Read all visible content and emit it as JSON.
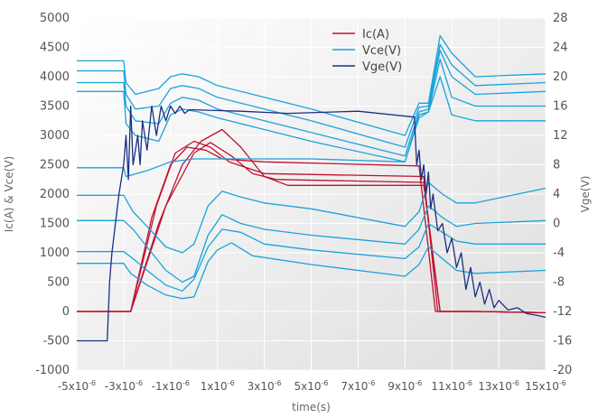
{
  "chart_data": {
    "type": "line",
    "xlabel": "time(s)",
    "ylabel_left": "Ic(A) & Vce(V)",
    "ylabel_right": "Vge(V)",
    "xlim": [
      -5,
      15
    ],
    "ylim_left": [
      -1000,
      5000
    ],
    "ylim_right": [
      -20,
      28
    ],
    "x_ticks": [
      -5,
      -3,
      -1,
      1,
      3,
      5,
      7,
      9,
      11,
      13,
      15
    ],
    "x_tick_labels": [
      "-5x10-6",
      "-3x10-6",
      "-1x10-6",
      "1x10-6",
      "3x10-6",
      "5x10-6",
      "7x10-6",
      "9x10-6",
      "11x10-6",
      "13x10-6",
      "15x10-6"
    ],
    "y_ticks_left": [
      -1000,
      -500,
      0,
      500,
      1000,
      1500,
      2000,
      2500,
      3000,
      3500,
      4000,
      4500,
      5000
    ],
    "y_ticks_right": [
      -20,
      -16,
      -12,
      -8,
      -4,
      0,
      4,
      8,
      12,
      16,
      20,
      24,
      28
    ],
    "grid": true,
    "legend_position": "top-center",
    "colors": {
      "Ic": "#c0102e",
      "Vce": "#1aa3db",
      "Vge": "#1a2f80"
    },
    "legend": [
      {
        "key": "Ic",
        "label": "Ic(A)"
      },
      {
        "key": "Vce",
        "label": "Vce(V)"
      },
      {
        "key": "Vge",
        "label": "Vge(V)"
      }
    ],
    "series": [
      {
        "group": "Ic",
        "axis": "left",
        "x": [
          -5,
          -2.7,
          -1.5,
          -0.5,
          0.3,
          1.2,
          2.0,
          3.0,
          4.0,
          9.8,
          10.5,
          12.0,
          15.0
        ],
        "y": [
          0,
          0,
          1500,
          2500,
          2900,
          3100,
          2800,
          2300,
          2150,
          2150,
          0,
          0,
          -20
        ]
      },
      {
        "group": "Ic",
        "axis": "left",
        "x": [
          -5,
          -2.7,
          -1.2,
          0.0,
          0.7,
          1.6,
          2.5,
          3.5,
          9.8,
          10.5,
          12.0,
          15.0
        ],
        "y": [
          0,
          0,
          1800,
          2700,
          2880,
          2650,
          2350,
          2250,
          2200,
          0,
          0,
          -20
        ]
      },
      {
        "group": "Ic",
        "axis": "left",
        "x": [
          -5,
          -2.7,
          -1.6,
          -0.8,
          0.0,
          0.7,
          1.5,
          3.0,
          9.8,
          10.4,
          12.0,
          15.0
        ],
        "y": [
          0,
          0,
          1800,
          2700,
          2900,
          2800,
          2550,
          2350,
          2300,
          0,
          0,
          -20
        ]
      },
      {
        "group": "Ic",
        "axis": "left",
        "x": [
          -5,
          -2.7,
          -1.8,
          -1.0,
          -0.3,
          0.5,
          1.2,
          3.0,
          9.6,
          10.3,
          12.0,
          15.0
        ],
        "y": [
          0,
          0,
          1600,
          2500,
          2800,
          2750,
          2600,
          2550,
          2480,
          0,
          0,
          -20
        ]
      },
      {
        "group": "Vce",
        "axis": "left",
        "x": [
          -5,
          -3.0,
          -2.9,
          -2.5,
          -1.5,
          -1.0,
          -0.5,
          0.2,
          1.0,
          3.0,
          5.0,
          9.0,
          9.6,
          10.0,
          10.5,
          11.0,
          12.0,
          15.0
        ],
        "y": [
          4270,
          4270,
          3900,
          3700,
          3800,
          4000,
          4050,
          4000,
          3850,
          3650,
          3450,
          3000,
          3550,
          3550,
          4700,
          4400,
          4000,
          4050
        ]
      },
      {
        "group": "Vce",
        "axis": "left",
        "x": [
          -5,
          -3.0,
          -2.9,
          -2.5,
          -1.5,
          -1.0,
          -0.5,
          0.2,
          1.0,
          3.0,
          5.0,
          9.0,
          9.6,
          10.0,
          10.5,
          11.0,
          12.0,
          15.0
        ],
        "y": [
          4100,
          4100,
          3700,
          3450,
          3500,
          3800,
          3850,
          3800,
          3650,
          3450,
          3250,
          2800,
          3480,
          3500,
          4550,
          4200,
          3850,
          3900
        ]
      },
      {
        "group": "Vce",
        "axis": "left",
        "x": [
          -5,
          -3.0,
          -2.9,
          -2.5,
          -1.5,
          -1.0,
          -0.5,
          0.2,
          1.0,
          3.0,
          5.0,
          9.0,
          9.6,
          10.0,
          10.5,
          11.0,
          12.0,
          15.0
        ],
        "y": [
          3900,
          3900,
          3500,
          3250,
          3200,
          3550,
          3650,
          3600,
          3450,
          3250,
          3050,
          2650,
          3400,
          3450,
          4450,
          4000,
          3700,
          3750
        ]
      },
      {
        "group": "Vce",
        "axis": "left",
        "x": [
          -5,
          -3.0,
          -2.9,
          -2.5,
          -1.5,
          -1.0,
          -0.5,
          0.2,
          1.0,
          3.0,
          5.0,
          9.0,
          9.6,
          10.0,
          10.5,
          11.0,
          12.0,
          15.0
        ],
        "y": [
          3750,
          3750,
          3200,
          3000,
          2900,
          3350,
          3450,
          3400,
          3300,
          3100,
          2900,
          2550,
          3350,
          3400,
          4300,
          3650,
          3500,
          3500
        ]
      },
      {
        "group": "Vce",
        "axis": "left",
        "x": [
          -5,
          -3.0,
          -2.9,
          -2.0,
          -1.0,
          0.0,
          2.0,
          5.0,
          9.0,
          9.6,
          10.0,
          10.5,
          11.0,
          12.0,
          15.0
        ],
        "y": [
          2450,
          2450,
          2300,
          2400,
          2550,
          2600,
          2600,
          2600,
          2550,
          3300,
          3400,
          4000,
          3350,
          3250,
          3250
        ]
      },
      {
        "group": "Vce",
        "axis": "left",
        "x": [
          -5,
          -3.0,
          -2.6,
          -2.0,
          -1.2,
          -0.5,
          0.0,
          0.6,
          1.2,
          2.0,
          3.0,
          5.0,
          9.0,
          9.6,
          10.0,
          10.6,
          11.2,
          12.0,
          15.0
        ],
        "y": [
          1980,
          1980,
          1700,
          1450,
          1100,
          1000,
          1150,
          1800,
          2050,
          1950,
          1850,
          1750,
          1450,
          1700,
          2200,
          2000,
          1850,
          1850,
          2100
        ]
      },
      {
        "group": "Vce",
        "axis": "left",
        "x": [
          -5,
          -3.0,
          -2.6,
          -2.0,
          -1.2,
          -0.5,
          0.0,
          0.6,
          1.2,
          2.0,
          3.0,
          5.0,
          9.0,
          9.6,
          10.0,
          10.6,
          11.2,
          12.0,
          15.0
        ],
        "y": [
          1550,
          1550,
          1400,
          1100,
          700,
          500,
          600,
          1300,
          1650,
          1500,
          1400,
          1300,
          1150,
          1400,
          1800,
          1600,
          1450,
          1500,
          1550
        ]
      },
      {
        "group": "Vce",
        "axis": "left",
        "x": [
          -5,
          -3.0,
          -2.6,
          -2.0,
          -1.2,
          -0.5,
          0.0,
          0.6,
          1.2,
          2.0,
          3.0,
          5.0,
          9.0,
          9.6,
          10.0,
          10.6,
          11.2,
          12.0,
          15.0
        ],
        "y": [
          1020,
          1020,
          900,
          700,
          450,
          350,
          550,
          1100,
          1400,
          1350,
          1150,
          1050,
          900,
          1100,
          1500,
          1350,
          1200,
          1150,
          1150
        ]
      },
      {
        "group": "Vce",
        "axis": "left",
        "x": [
          -5,
          -3.0,
          -2.7,
          -2.0,
          -1.2,
          -0.5,
          0.0,
          0.6,
          1.0,
          1.6,
          2.5,
          5.0,
          9.0,
          9.6,
          10.0,
          10.6,
          11.2,
          12.0,
          15.0
        ],
        "y": [
          820,
          820,
          650,
          450,
          280,
          220,
          250,
          850,
          1050,
          1170,
          950,
          800,
          600,
          800,
          1100,
          900,
          700,
          650,
          700
        ]
      },
      {
        "group": "Vge",
        "axis": "right",
        "x": [
          -5,
          -3.7,
          -3.6,
          -3.5,
          -3.2,
          -3.0,
          -2.9,
          -2.8,
          -2.7,
          -2.6,
          -2.5,
          -2.4,
          -2.3,
          -2.2,
          -2.0,
          -1.8,
          -1.6,
          -1.4,
          -1.2,
          -1.0,
          -0.8,
          -0.6,
          -0.4,
          -0.2,
          0.0,
          2.0,
          4.0,
          7.0,
          9.4,
          9.5,
          9.6,
          9.7,
          9.8,
          9.9,
          10.0,
          10.1,
          10.2,
          10.4,
          10.6,
          10.8,
          11.0,
          11.2,
          11.4,
          11.6,
          11.8,
          12.0,
          12.2,
          12.4,
          12.6,
          12.8,
          13.0,
          13.4,
          13.8,
          14.2,
          14.6,
          15.0
        ],
        "y": [
          -16,
          -16,
          -8,
          -4,
          4,
          8,
          12,
          6,
          16,
          8,
          10,
          12,
          8,
          14,
          10,
          16,
          12,
          16,
          14,
          16,
          15,
          16,
          15,
          15.5,
          15.5,
          15.3,
          15,
          15.3,
          14.5,
          8,
          10,
          6,
          8,
          4,
          7,
          2,
          4,
          -1,
          0,
          -4,
          -2,
          -6,
          -4,
          -9,
          -6,
          -10,
          -8,
          -11,
          -9,
          -11.5,
          -10.5,
          -11.8,
          -11.5,
          -12.3,
          -12.5,
          -12.8
        ]
      }
    ]
  }
}
